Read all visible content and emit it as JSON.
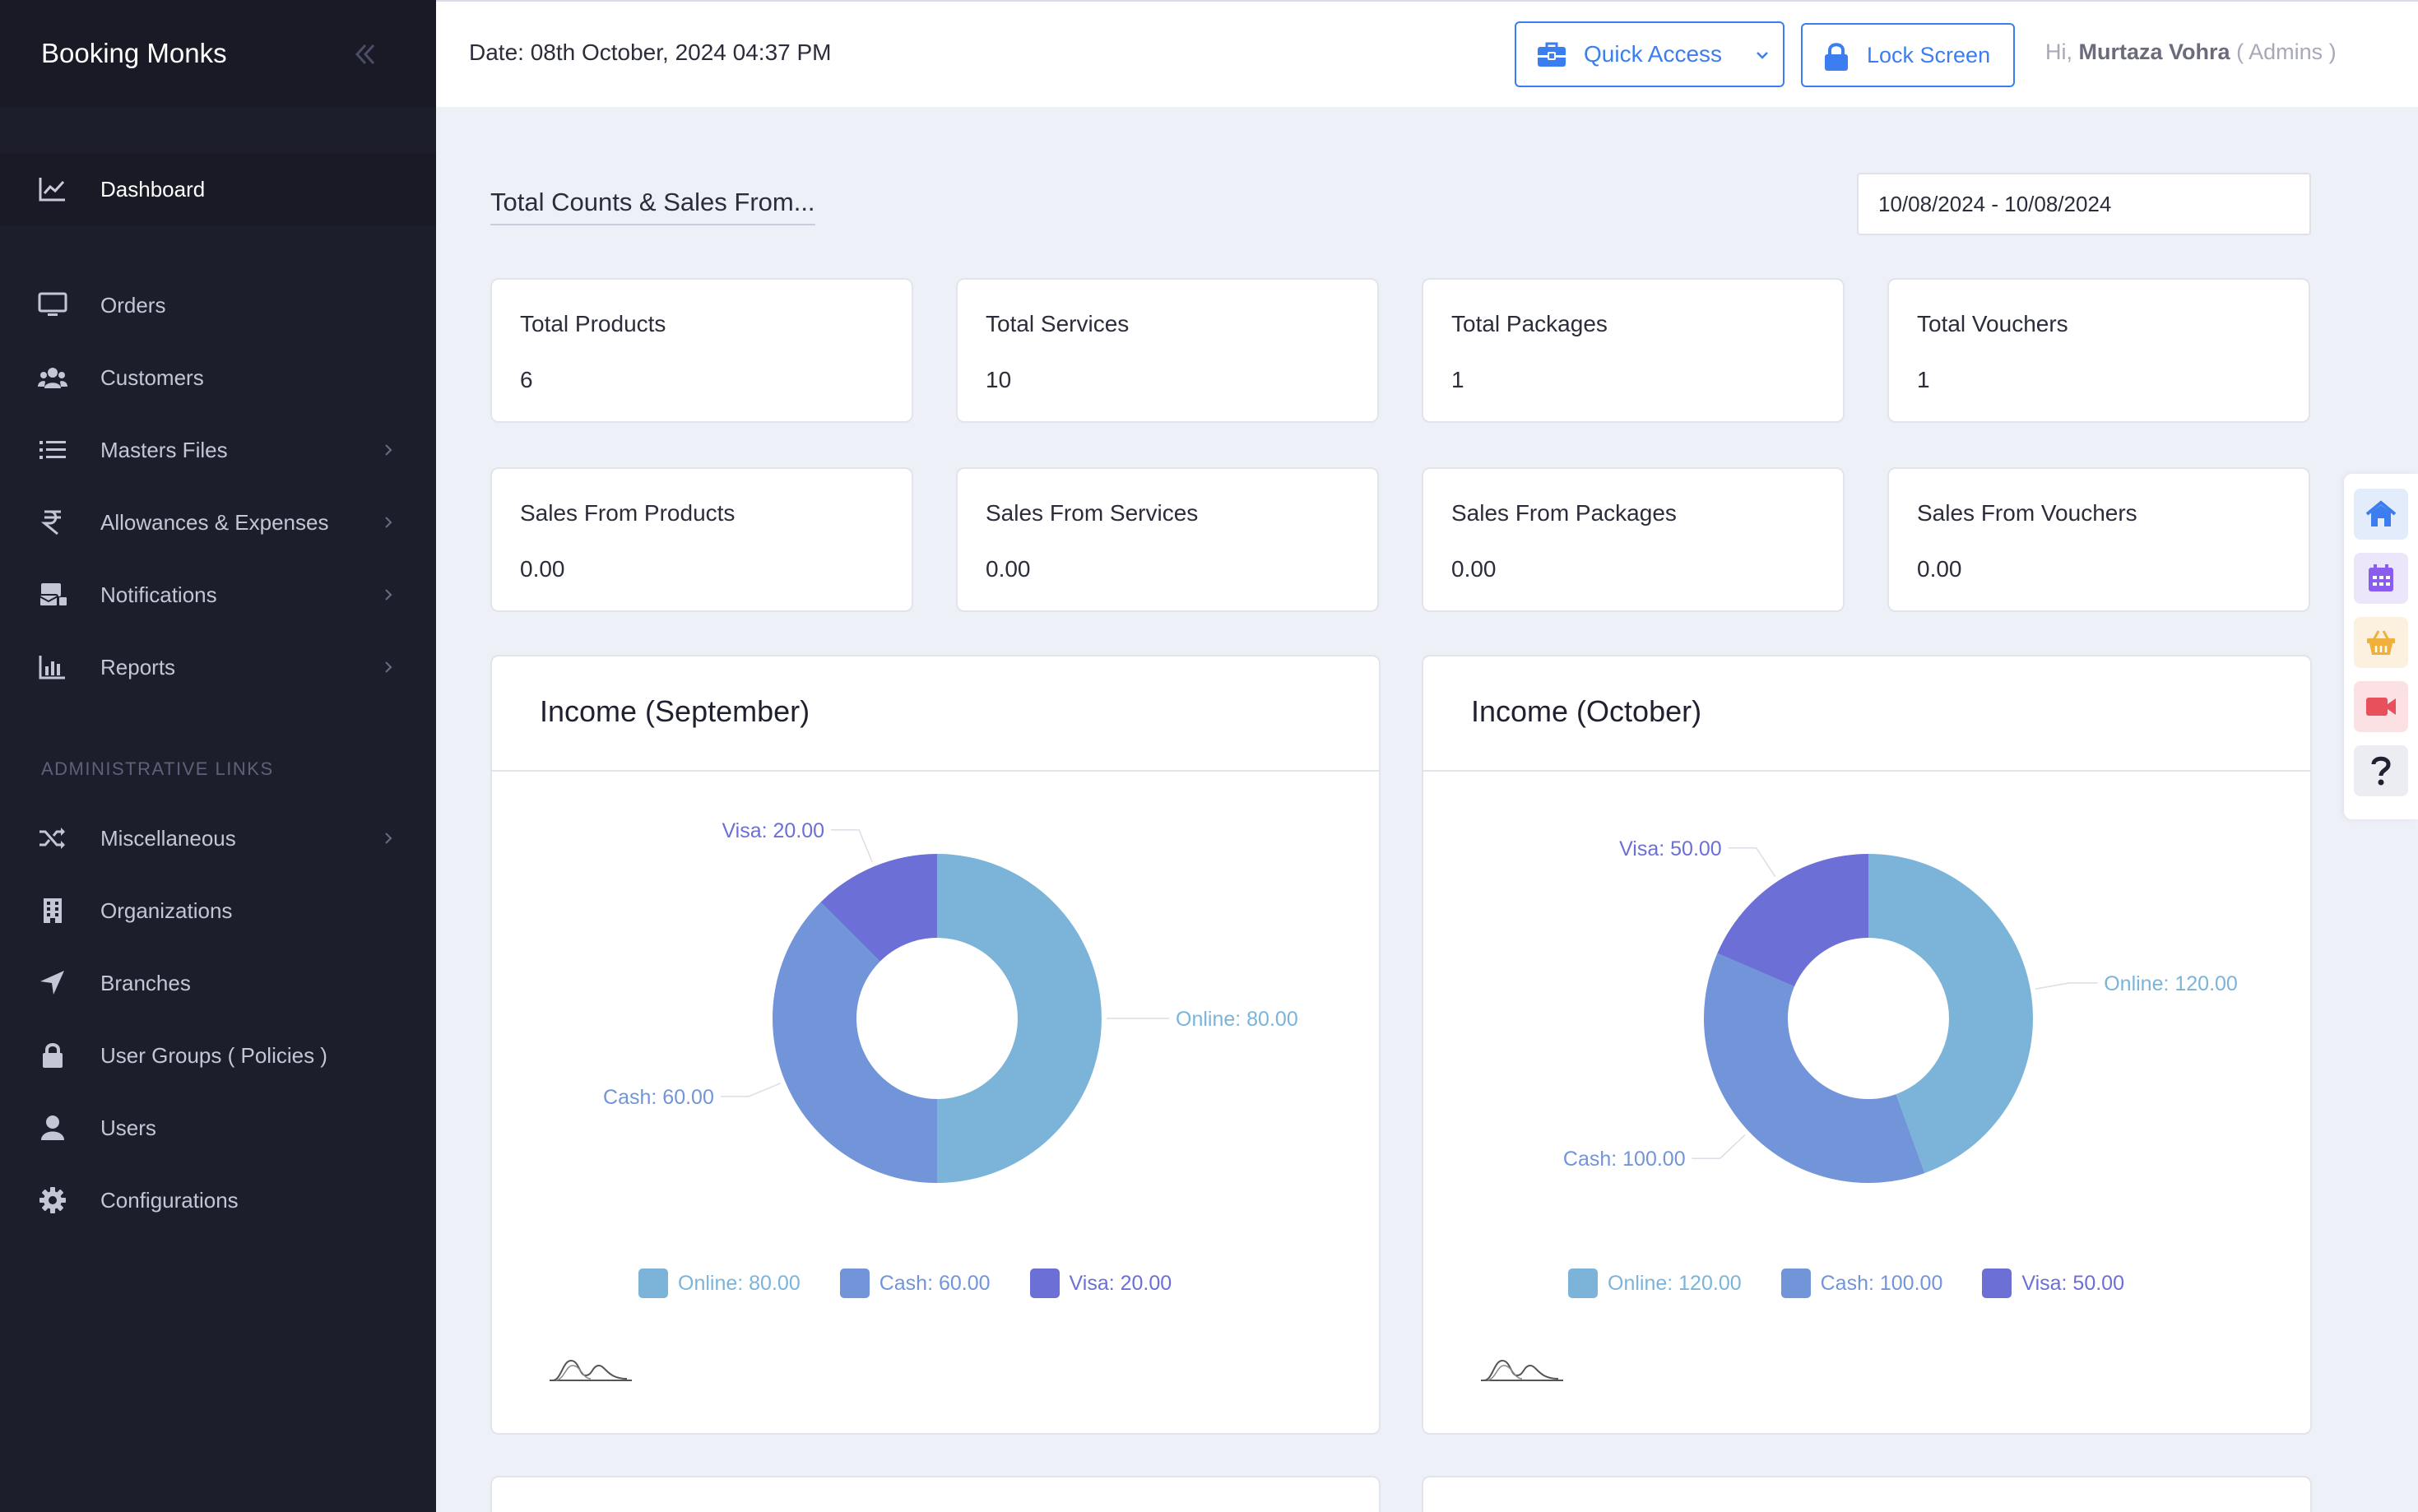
{
  "app": {
    "brand": "Booking Monks"
  },
  "sidebar": {
    "section_title": "ADMINISTRATIVE LINKS",
    "items": [
      {
        "label": "Dashboard",
        "icon": "chart-line-icon"
      },
      {
        "label": "Orders",
        "icon": "monitor-icon"
      },
      {
        "label": "Customers",
        "icon": "users-icon"
      },
      {
        "label": "Masters Files",
        "icon": "list-icon"
      },
      {
        "label": "Allowances & Expenses",
        "icon": "rupee-icon"
      },
      {
        "label": "Notifications",
        "icon": "notification-icon"
      },
      {
        "label": "Reports",
        "icon": "bar-chart-icon"
      }
    ],
    "admin_items": [
      {
        "label": "Miscellaneous",
        "icon": "shuffle-icon"
      },
      {
        "label": "Organizations",
        "icon": "building-icon"
      },
      {
        "label": "Branches",
        "icon": "location-arrow-icon"
      },
      {
        "label": "User Groups ( Policies )",
        "icon": "lock-icon"
      },
      {
        "label": "Users",
        "icon": "user-icon"
      },
      {
        "label": "Configurations",
        "icon": "gear-icon"
      }
    ]
  },
  "topbar": {
    "date": "Date: 08th October, 2024 04:37 PM",
    "quick_access": "Quick Access",
    "lock_screen": "Lock Screen",
    "greeting_prefix": "Hi,",
    "user_name": "Murtaza Vohra",
    "user_role": "( Admins )"
  },
  "main": {
    "heading": "Total Counts & Sales From...",
    "date_range": "10/08/2024 - 10/08/2024",
    "counts": [
      {
        "label": "Total Products",
        "value": "6"
      },
      {
        "label": "Total Services",
        "value": "10"
      },
      {
        "label": "Total Packages",
        "value": "1"
      },
      {
        "label": "Total Vouchers",
        "value": "1"
      }
    ],
    "sales": [
      {
        "label": "Sales From Products",
        "value": "0.00"
      },
      {
        "label": "Sales From Services",
        "value": "0.00"
      },
      {
        "label": "Sales From Packages",
        "value": "0.00"
      },
      {
        "label": "Sales From Vouchers",
        "value": "0.00"
      }
    ]
  },
  "colors": {
    "online": "#7bb4d8",
    "cash": "#7294d8",
    "visa": "#6b6fd6"
  },
  "chart_data": [
    {
      "type": "pie",
      "title": "Income (September)",
      "categories": [
        "Online",
        "Cash",
        "Visa"
      ],
      "values": [
        80,
        60,
        20
      ],
      "labels": [
        "Online: 80.00",
        "Cash: 60.00",
        "Visa: 20.00"
      ],
      "legend": "bottom"
    },
    {
      "type": "pie",
      "title": "Income (October)",
      "categories": [
        "Online",
        "Cash",
        "Visa"
      ],
      "values": [
        120,
        100,
        50
      ],
      "labels": [
        "Online: 120.00",
        "Cash: 100.00",
        "Visa: 50.00"
      ],
      "legend": "bottom"
    }
  ],
  "right_toolbar": [
    {
      "icon": "home-icon",
      "color": "#3c7ef0"
    },
    {
      "icon": "calendar-icon",
      "color": "#8a5cf0"
    },
    {
      "icon": "basket-icon",
      "color": "#f0b13c"
    },
    {
      "icon": "video-icon",
      "color": "#e8505b"
    },
    {
      "icon": "question-icon",
      "color": "#1f2130"
    }
  ]
}
